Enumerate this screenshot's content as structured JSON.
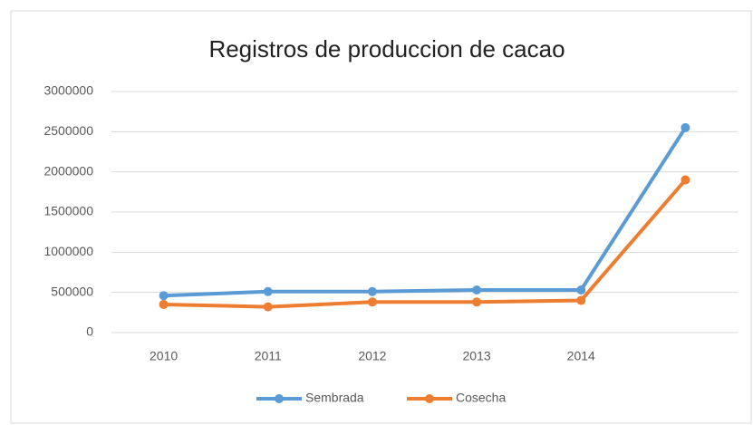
{
  "chart_data": {
    "type": "line",
    "title": "Registros de produccion de cacao",
    "categories": [
      "2010",
      "2011",
      "2012",
      "2013",
      "2014",
      null
    ],
    "series": [
      {
        "name": "Sembrada",
        "color": "#5b9bd5",
        "values": [
          460000,
          510000,
          510000,
          530000,
          530000,
          2550000
        ]
      },
      {
        "name": "Cosecha",
        "color": "#ed7d31",
        "values": [
          350000,
          320000,
          380000,
          380000,
          400000,
          1900000
        ]
      }
    ],
    "ylim": [
      0,
      3000000
    ],
    "yticks": [
      0,
      500000,
      1000000,
      1500000,
      2000000,
      2500000,
      3000000
    ],
    "grid": true,
    "legend": "bottom"
  }
}
